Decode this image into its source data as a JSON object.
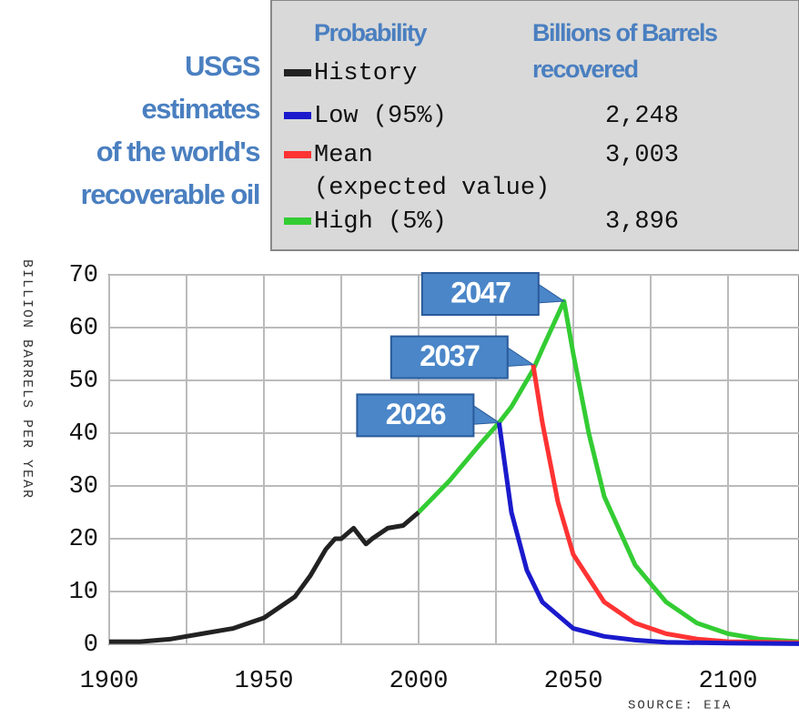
{
  "chart_data": {
    "type": "line",
    "title_lines": [
      "USGS",
      "estimates",
      "of the world's",
      "recoverable oil"
    ],
    "legend_headers": [
      "Probability",
      "Billions of Barrels",
      "recovered"
    ],
    "ylabel": "BILLION BARRELS PER YEAR",
    "source": "SOURCE: EIA",
    "xlim": [
      1900,
      2123
    ],
    "ylim": [
      0,
      70
    ],
    "xticks": [
      1900,
      1950,
      2000,
      2050,
      2100
    ],
    "xgrid_minor": [
      1925,
      1975,
      2025,
      2075
    ],
    "yticks": [
      0,
      10,
      20,
      30,
      40,
      50,
      60,
      70
    ],
    "grid": true,
    "series": [
      {
        "name": "History",
        "color": "#222222",
        "x": [
          1900,
          1910,
          1920,
          1930,
          1940,
          1950,
          1960,
          1965,
          1970,
          1973,
          1975,
          1979,
          1983,
          1985,
          1990,
          1995,
          2000
        ],
        "values": [
          0.5,
          0.5,
          1,
          2,
          3,
          5,
          9,
          13,
          18,
          20,
          20,
          22,
          19,
          20,
          22,
          22.5,
          25
        ]
      },
      {
        "name": "Low (95%)",
        "color": "#1a1acc",
        "recovered": "2,248",
        "x": [
          2026,
          2030,
          2035,
          2040,
          2050,
          2060,
          2070,
          2080,
          2100,
          2123
        ],
        "values": [
          42,
          25,
          14,
          8,
          3,
          1.5,
          0.8,
          0.4,
          0.2,
          0.1
        ]
      },
      {
        "name": "Mean",
        "name_note": "(expected value)",
        "color": "#ff3333",
        "recovered": "3,003",
        "x": [
          2037,
          2040,
          2045,
          2050,
          2060,
          2070,
          2080,
          2090,
          2100,
          2123
        ],
        "values": [
          53,
          42,
          27,
          17,
          8,
          4,
          2,
          1,
          0.5,
          0.3
        ]
      },
      {
        "name": "High (5%)",
        "color": "#33cc33",
        "recovered": "3,896",
        "x": [
          2000,
          2010,
          2020,
          2026,
          2030,
          2037,
          2040,
          2047,
          2050,
          2055,
          2060,
          2070,
          2080,
          2090,
          2100,
          2110,
          2123
        ],
        "values": [
          25,
          31,
          38,
          42,
          45,
          52,
          56,
          65,
          55,
          40,
          28,
          15,
          8,
          4,
          2,
          1,
          0.5
        ]
      }
    ],
    "annotations": [
      {
        "text": "2047",
        "x": 2047,
        "y": 65
      },
      {
        "text": "2037",
        "x": 2037,
        "y": 53
      },
      {
        "text": "2026",
        "x": 2026,
        "y": 42
      }
    ]
  }
}
